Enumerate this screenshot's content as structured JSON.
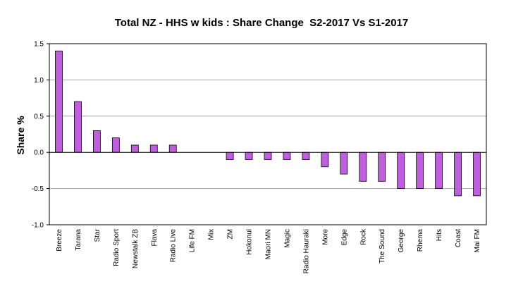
{
  "chart_data": {
    "type": "bar",
    "title": "Total NZ - HHS w kids : Share Change  S2-2017 Vs S1-2017",
    "xlabel": "",
    "ylabel": "Share  %",
    "ylim": [
      -1.0,
      1.5
    ],
    "yticks": [
      "1.5",
      "1.0",
      "0.5",
      "0.0",
      "-0.5",
      "-1.0"
    ],
    "ytick_values": [
      1.5,
      1.0,
      0.5,
      0.0,
      -0.5,
      -1.0
    ],
    "grid": true,
    "legend": "none",
    "bar_color": "#bf5fe0",
    "bar_edge_color": "#000000",
    "grid_color": "#a6a6a6",
    "categories": [
      "Breeze",
      "Tarana",
      "Star",
      "Radio Sport",
      "Newstalk ZB",
      "Flava",
      "Radio Live",
      "Life FM",
      "Mix",
      "ZM",
      "Hokonui",
      "Maori MN",
      "Magic",
      "Radio Hauraki",
      "More",
      "Edge",
      "Rock",
      "The Sound",
      "George",
      "Rhema",
      "Hits",
      "Coast",
      "Mai FM"
    ],
    "values": [
      1.4,
      0.7,
      0.3,
      0.2,
      0.1,
      0.1,
      0.1,
      0.0,
      0.0,
      -0.1,
      -0.1,
      -0.1,
      -0.1,
      -0.1,
      -0.2,
      -0.3,
      -0.4,
      -0.4,
      -0.5,
      -0.5,
      -0.5,
      -0.6,
      -0.6
    ]
  }
}
